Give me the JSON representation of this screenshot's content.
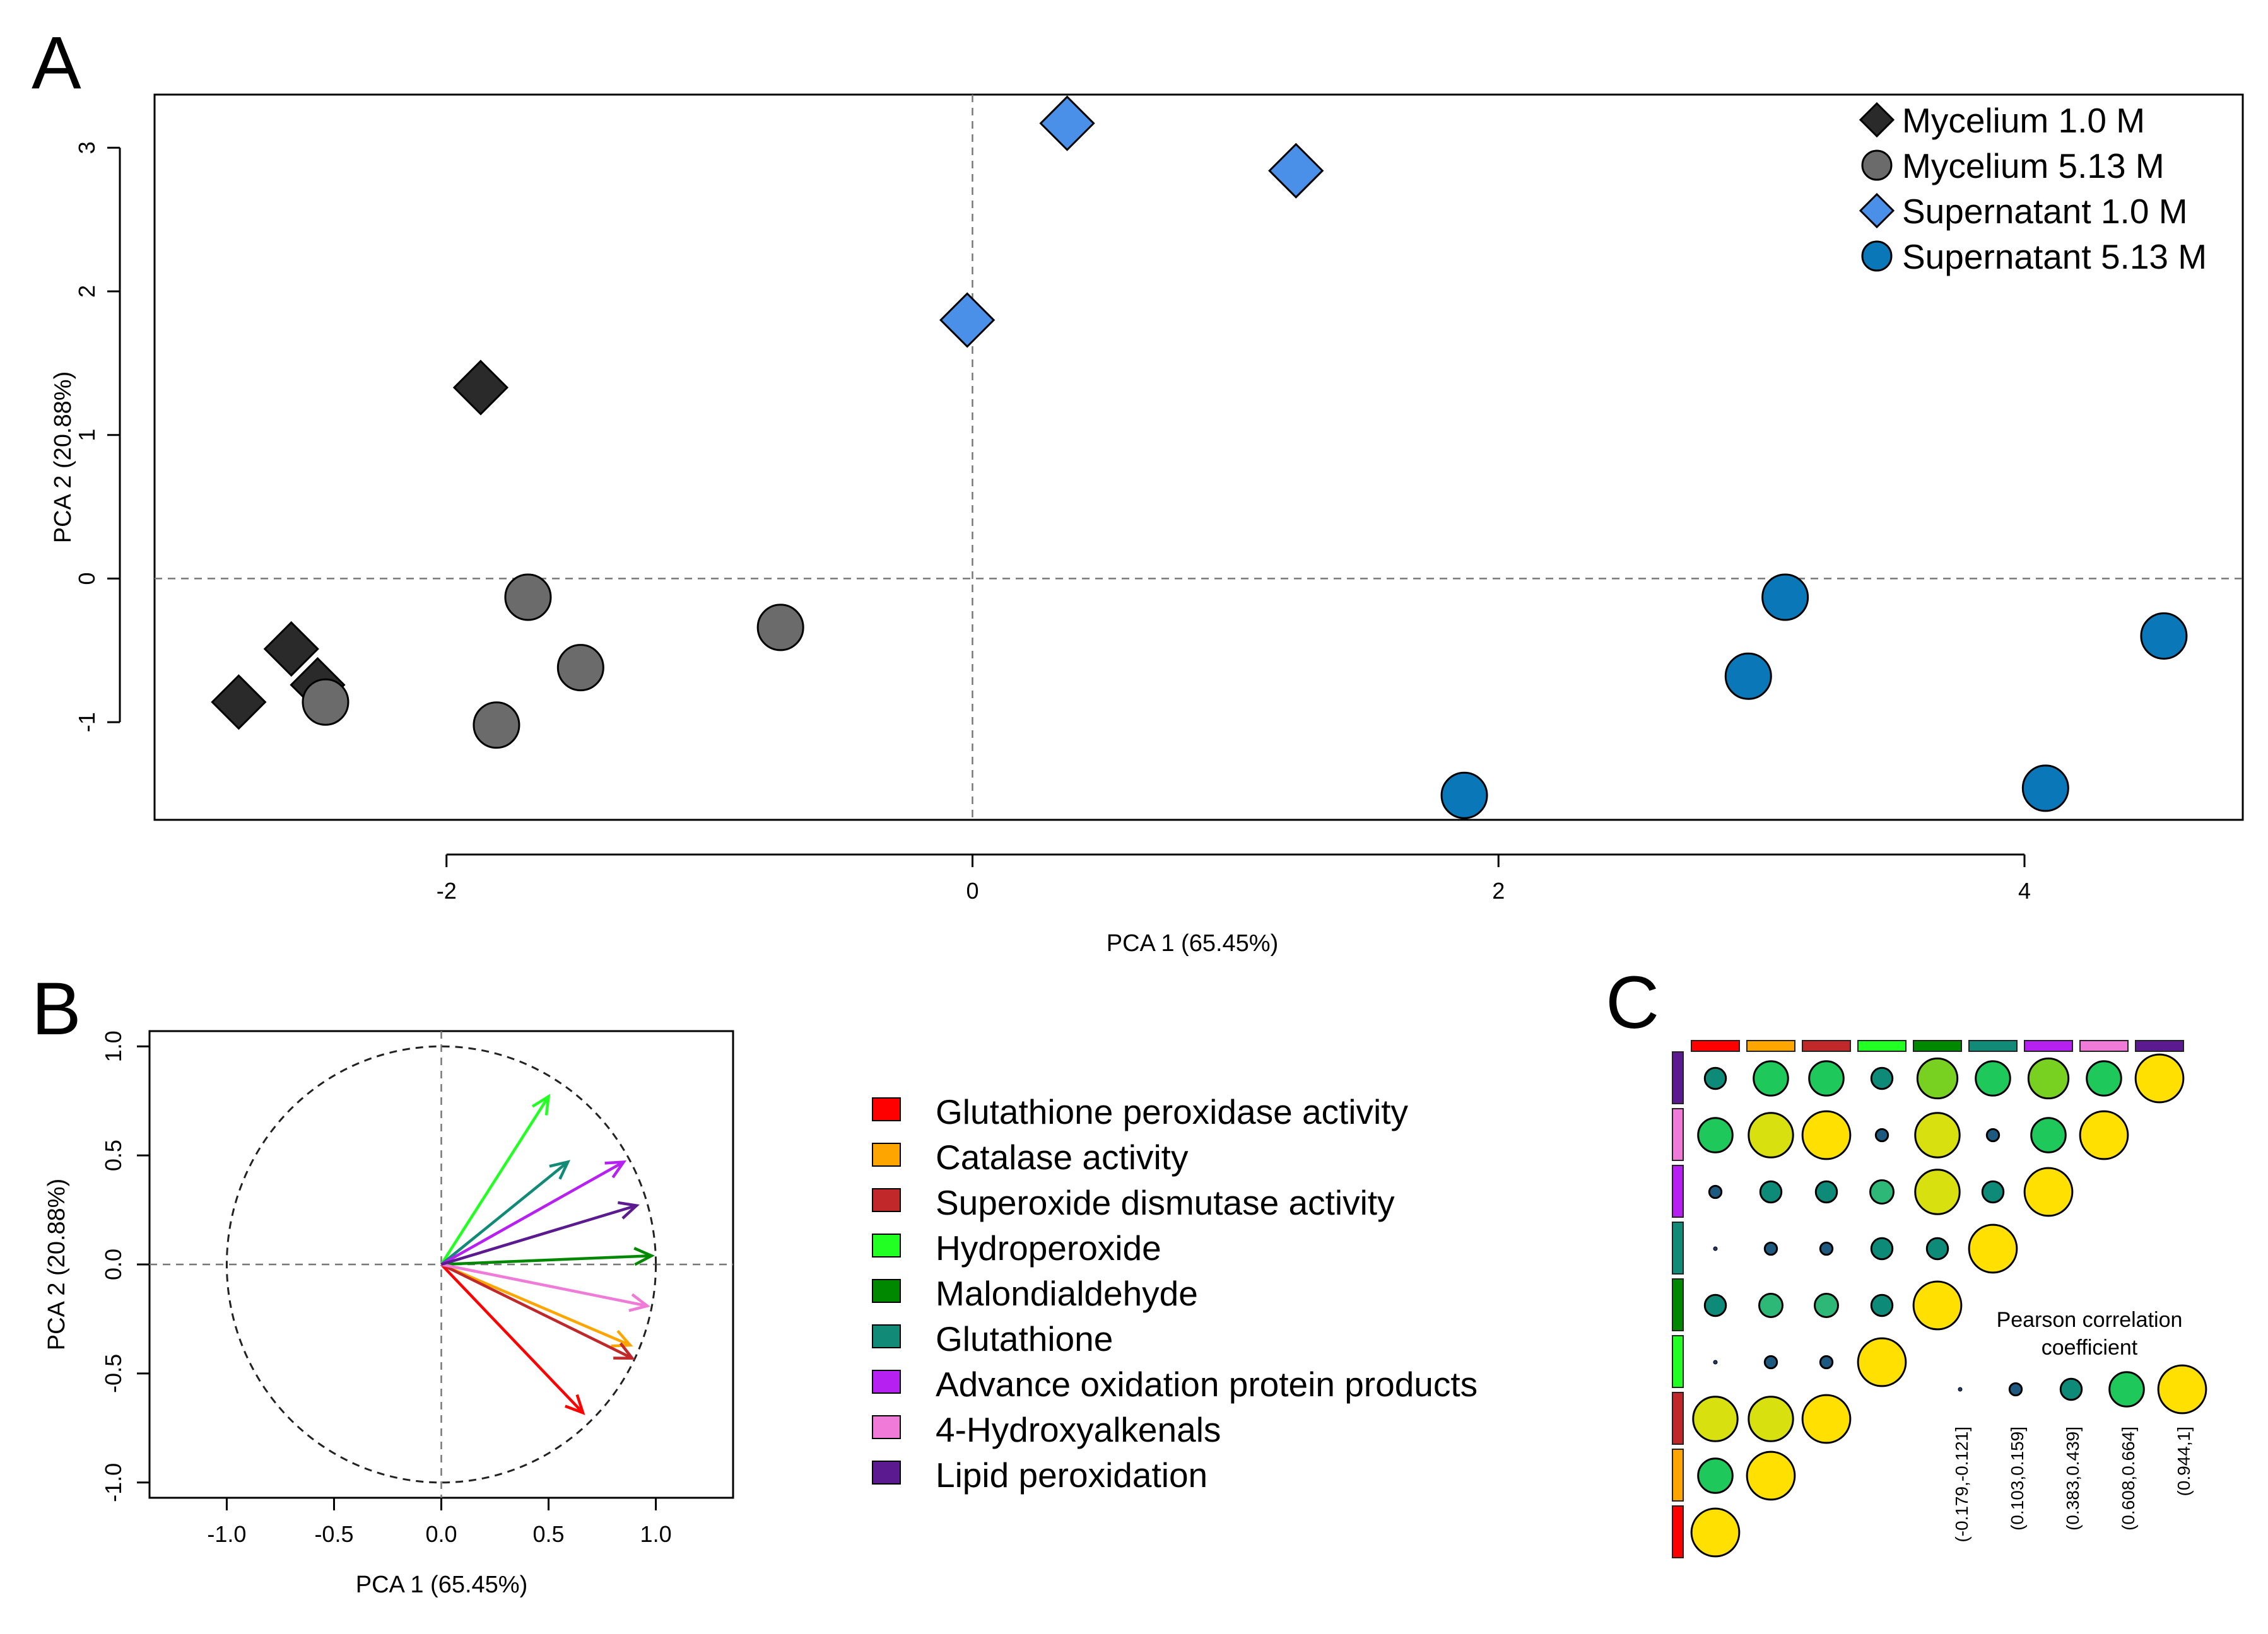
{
  "panels": {
    "a": "A",
    "b": "B",
    "c": "C"
  },
  "colors": {
    "mycelium": "#2a2a2a",
    "mycelium_513": "#6b6b6b",
    "supernatant_10": "#4a90e8",
    "supernatant_513": "#0a78b8",
    "gpx": "#ff0000",
    "cat": "#ffa500",
    "sod": "#c0282a",
    "hp": "#22ff22",
    "mda": "#008800",
    "gsh": "#128a78",
    "aopp": "#b620f0",
    "hae": "#f07ad8",
    "lp": "#5b1a90"
  },
  "chart_data": [
    {
      "id": "A",
      "type": "scatter",
      "xlabel": "PCA 1 (65.45%)",
      "ylabel": "PCA 2 (20.88%)",
      "xlim": [
        -3.11,
        4.83
      ],
      "ylim": [
        -1.68,
        3.37
      ],
      "xticks": [
        -2,
        0,
        2,
        4
      ],
      "xtick_labels": [
        "-2",
        "0",
        "2",
        "4"
      ],
      "yticks": [
        -1,
        0,
        1,
        2,
        3
      ],
      "ytick_labels": [
        "-1",
        "0",
        "1",
        "2",
        "3"
      ],
      "reference_lines": {
        "x": 0,
        "y": 0
      },
      "series": [
        {
          "name": "Mycelium 1.0 M",
          "marker": "diamond",
          "color": "#2a2a2a",
          "points": [
            [
              -2.79,
              -0.86
            ],
            [
              -2.59,
              -0.49
            ],
            [
              -2.49,
              -0.74
            ],
            [
              -1.87,
              1.33
            ]
          ]
        },
        {
          "name": "Mycelium 5.13 M",
          "marker": "circle",
          "color": "#6b6b6b",
          "points": [
            [
              -2.46,
              -0.86
            ],
            [
              -1.81,
              -1.02
            ],
            [
              -1.69,
              -0.13
            ],
            [
              -1.49,
              -0.62
            ],
            [
              -0.73,
              -0.34
            ]
          ]
        },
        {
          "name": "Supernatant 1.0 M",
          "marker": "diamond",
          "color": "#4a90e8",
          "points": [
            [
              -0.02,
              1.8
            ],
            [
              0.36,
              3.17
            ],
            [
              1.23,
              2.84
            ]
          ]
        },
        {
          "name": "Supernatant 5.13 M",
          "marker": "circle",
          "color": "#0a78b8",
          "points": [
            [
              1.87,
              -1.51
            ],
            [
              2.95,
              -0.68
            ],
            [
              3.09,
              -0.13
            ],
            [
              4.08,
              -1.46
            ],
            [
              4.53,
              -0.4
            ]
          ]
        }
      ]
    },
    {
      "id": "B",
      "type": "biplot",
      "xlabel": "PCA 1 (65.45%)",
      "ylabel": "PCA 2 (20.88%)",
      "xlim": [
        -1.36,
        1.36
      ],
      "ylim": [
        -1.07,
        1.07
      ],
      "xticks": [
        -1.0,
        -0.5,
        0.0,
        0.5,
        1.0
      ],
      "xtick_labels": [
        "-1.0",
        "-0.5",
        "0.0",
        "0.5",
        "1.0"
      ],
      "yticks": [
        -1.0,
        -0.5,
        0.0,
        0.5,
        1.0
      ],
      "ytick_labels": [
        "-1.0",
        "-0.5",
        "0.0",
        "0.5",
        "1.0"
      ],
      "circle_radius": 1.0,
      "vectors": [
        {
          "name": "Glutathione peroxidase activity",
          "color": "#ff0000",
          "x": 0.66,
          "y": -0.68
        },
        {
          "name": "Catalase activity",
          "color": "#ffa500",
          "x": 0.88,
          "y": -0.37
        },
        {
          "name": "Superoxide dismutase activity",
          "color": "#c0282a",
          "x": 0.89,
          "y": -0.43
        },
        {
          "name": "Hydroperoxide",
          "color": "#22ff22",
          "x": 0.5,
          "y": 0.77
        },
        {
          "name": "Malondialdehyde",
          "color": "#008800",
          "x": 0.98,
          "y": 0.04
        },
        {
          "name": "Glutathione",
          "color": "#128a78",
          "x": 0.59,
          "y": 0.47
        },
        {
          "name": "Advance oxidation protein products",
          "color": "#b620f0",
          "x": 0.85,
          "y": 0.47
        },
        {
          "name": "4-Hydroxyalkenals",
          "color": "#f07ad8",
          "x": 0.96,
          "y": -0.19
        },
        {
          "name": "Lipid peroxidation",
          "color": "#5b1a90",
          "x": 0.91,
          "y": 0.27
        }
      ]
    },
    {
      "id": "C",
      "type": "heatmap",
      "variables": [
        "Glutathione peroxidase activity",
        "Catalase activity",
        "Superoxide dismutase activity",
        "Hydroperoxide",
        "Malondialdehyde",
        "Glutathione",
        "Advance oxidation protein products",
        "4-Hydroxyalkenals",
        "Lipid peroxidation"
      ],
      "legend_title": "Pearson correlation coefficient",
      "legend_title_lines": [
        "Pearson correlation",
        "coefficient"
      ],
      "bins": [
        "(-0.179,-0.121]",
        "(0.103,0.159]",
        "(0.383,0.439]",
        "(0.608,0.664]",
        "(0.944,1]"
      ],
      "cells": [
        [
          [
            0,
            4
          ]
        ],
        [
          [
            0,
            3
          ],
          [
            1,
            4
          ]
        ],
        [
          [
            0,
            5
          ],
          [
            1,
            5
          ],
          [
            2,
            4
          ]
        ],
        [
          [
            0,
            0
          ],
          [
            1,
            1
          ],
          [
            2,
            1
          ],
          [
            3,
            4
          ]
        ],
        [
          [
            0,
            2
          ],
          [
            1,
            7
          ],
          [
            2,
            7
          ],
          [
            3,
            2
          ],
          [
            4,
            4
          ]
        ],
        [
          [
            0,
            0
          ],
          [
            1,
            1
          ],
          [
            2,
            1
          ],
          [
            3,
            2
          ],
          [
            4,
            2
          ],
          [
            5,
            4
          ]
        ],
        [
          [
            0,
            1
          ],
          [
            1,
            2
          ],
          [
            2,
            2
          ],
          [
            3,
            7
          ],
          [
            4,
            5
          ],
          [
            5,
            2
          ],
          [
            6,
            4
          ]
        ],
        [
          [
            0,
            3
          ],
          [
            1,
            5
          ],
          [
            2,
            4
          ],
          [
            3,
            1
          ],
          [
            4,
            5
          ],
          [
            5,
            1
          ],
          [
            6,
            3
          ],
          [
            7,
            4
          ]
        ],
        [
          [
            0,
            2
          ],
          [
            1,
            3
          ],
          [
            2,
            3
          ],
          [
            3,
            2
          ],
          [
            4,
            6
          ],
          [
            5,
            3
          ],
          [
            6,
            6
          ],
          [
            7,
            3
          ],
          [
            8,
            4
          ]
        ]
      ],
      "levels": [
        {
          "color": "#1e3d6e",
          "scale": 0.06
        },
        {
          "color": "#1e5a80",
          "scale": 0.22
        },
        {
          "color": "#0e8a78",
          "scale": 0.38
        },
        {
          "color": "#1ec85a",
          "scale": 0.62
        },
        {
          "color": "#ffe000",
          "scale": 0.86
        },
        {
          "color": "#d8e010",
          "scale": 0.8
        },
        {
          "color": "#78d020",
          "scale": 0.72
        },
        {
          "color": "#2eb878",
          "scale": 0.42
        }
      ]
    }
  ]
}
